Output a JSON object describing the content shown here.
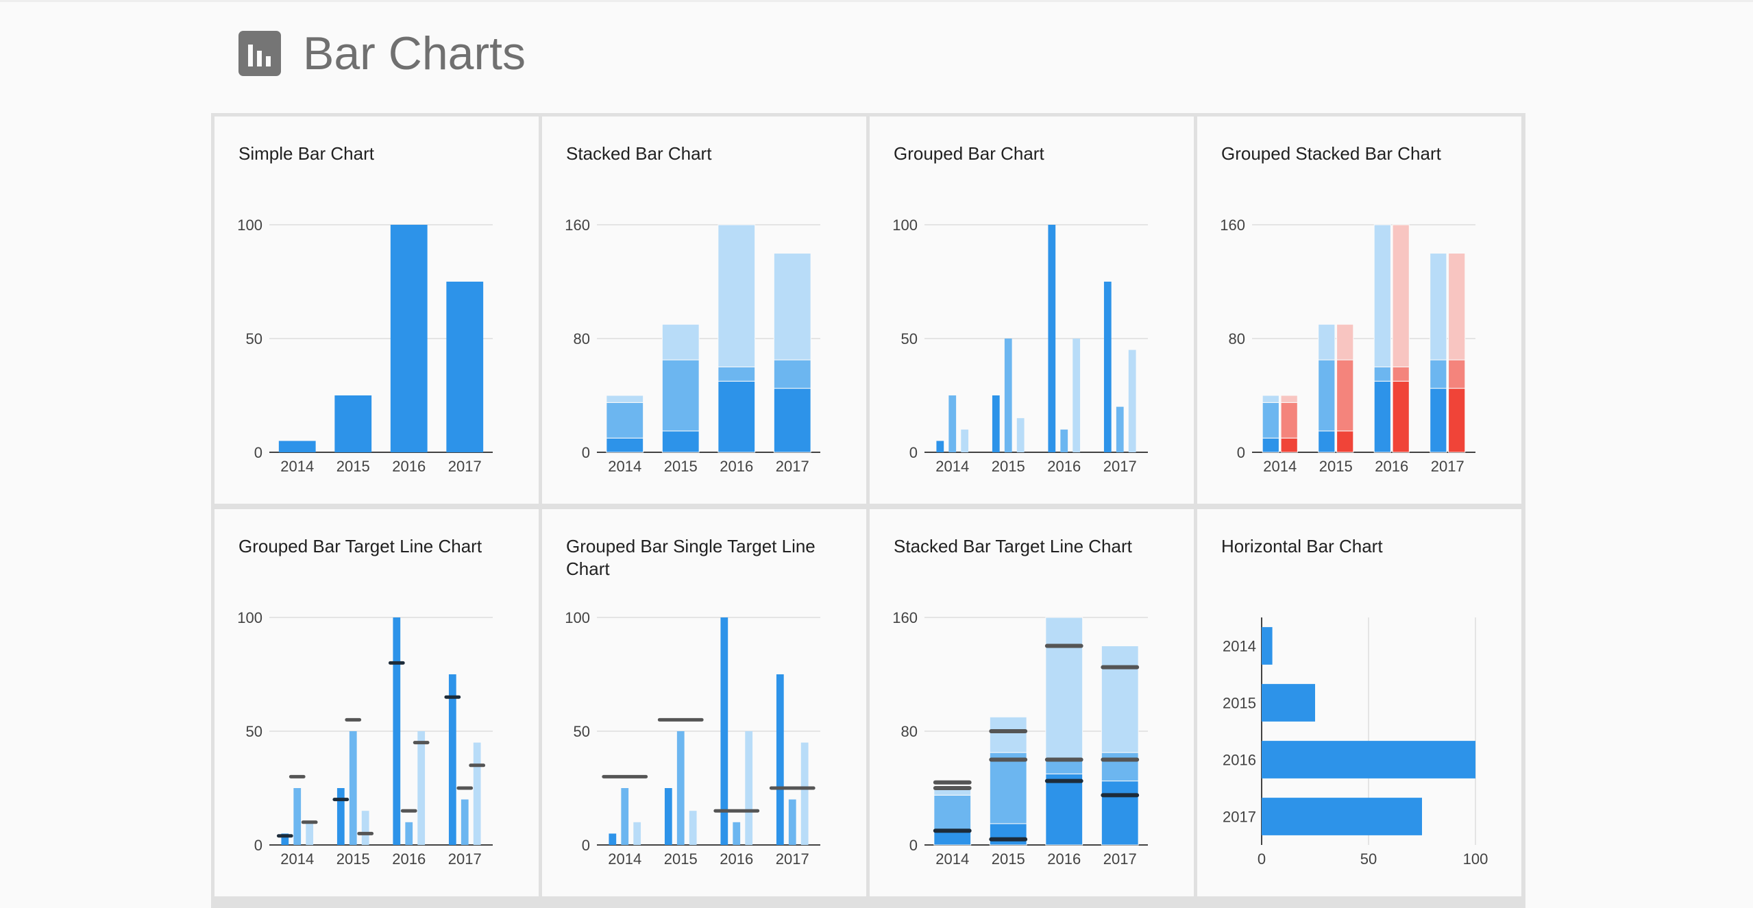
{
  "page": {
    "title": "Bar Charts",
    "icon": "bar-chart-icon"
  },
  "colors": {
    "blue_dark": "#2d93e9",
    "blue_mid": "#6cb6f0",
    "blue_light": "#b8dcf8",
    "red_dark": "#f04438",
    "red_mid": "#f4847c",
    "red_light": "#f8c5c1",
    "target_line": "#555555",
    "target_line_dark": "#1d2c3a",
    "gridline": "#dddddd",
    "axis": "#424242"
  },
  "chart_data": [
    {
      "id": "simple",
      "type": "bar",
      "title": "Simple Bar Chart",
      "categories": [
        "2014",
        "2015",
        "2016",
        "2017"
      ],
      "series": [
        {
          "values": [
            5,
            25,
            100,
            75
          ]
        }
      ],
      "ylim": [
        0,
        100
      ],
      "yticks": [
        "0",
        "50",
        "100"
      ],
      "mode": "simple",
      "grid": true
    },
    {
      "id": "stacked",
      "type": "bar",
      "title": "Stacked Bar Chart",
      "categories": [
        "2014",
        "2015",
        "2016",
        "2017"
      ],
      "series": [
        {
          "values": [
            10,
            15,
            50,
            45
          ]
        },
        {
          "values": [
            25,
            50,
            10,
            20
          ]
        },
        {
          "values": [
            5,
            25,
            100,
            75
          ]
        }
      ],
      "ylim": [
        0,
        160
      ],
      "yticks": [
        "0",
        "80",
        "160"
      ],
      "mode": "stacked",
      "grid": true
    },
    {
      "id": "grouped",
      "type": "bar",
      "title": "Grouped Bar Chart",
      "categories": [
        "2014",
        "2015",
        "2016",
        "2017"
      ],
      "series": [
        {
          "values": [
            5,
            25,
            100,
            75
          ]
        },
        {
          "values": [
            25,
            50,
            10,
            20
          ]
        },
        {
          "values": [
            10,
            15,
            50,
            45
          ]
        }
      ],
      "ylim": [
        0,
        100
      ],
      "yticks": [
        "0",
        "50",
        "100"
      ],
      "mode": "grouped",
      "grid": true
    },
    {
      "id": "grouped-stacked",
      "type": "bar",
      "title": "Grouped Stacked Bar Chart",
      "categories": [
        "2014",
        "2015",
        "2016",
        "2017"
      ],
      "groups": [
        {
          "palette": "blue",
          "series": [
            {
              "values": [
                10,
                15,
                50,
                45
              ]
            },
            {
              "values": [
                25,
                50,
                10,
                20
              ]
            },
            {
              "values": [
                5,
                25,
                100,
                75
              ]
            }
          ]
        },
        {
          "palette": "red",
          "series": [
            {
              "values": [
                10,
                15,
                50,
                45
              ]
            },
            {
              "values": [
                25,
                50,
                10,
                20
              ]
            },
            {
              "values": [
                5,
                25,
                100,
                75
              ]
            }
          ]
        }
      ],
      "ylim": [
        0,
        160
      ],
      "yticks": [
        "0",
        "80",
        "160"
      ],
      "mode": "grouped-stacked",
      "grid": true
    },
    {
      "id": "grouped-target",
      "type": "bar",
      "title": "Grouped Bar Target Line Chart",
      "categories": [
        "2014",
        "2015",
        "2016",
        "2017"
      ],
      "series": [
        {
          "values": [
            5,
            25,
            100,
            75
          ],
          "targets": [
            4,
            20,
            80,
            65
          ]
        },
        {
          "values": [
            25,
            50,
            10,
            20
          ],
          "targets": [
            30,
            55,
            15,
            25
          ]
        },
        {
          "values": [
            10,
            15,
            50,
            45
          ],
          "targets": [
            10,
            5,
            45,
            35
          ]
        }
      ],
      "ylim": [
        0,
        100
      ],
      "yticks": [
        "0",
        "50",
        "100"
      ],
      "mode": "grouped-target",
      "grid": true
    },
    {
      "id": "grouped-single-target",
      "type": "bar",
      "title": "Grouped Bar Single Target Line Chart",
      "categories": [
        "2014",
        "2015",
        "2016",
        "2017"
      ],
      "series": [
        {
          "values": [
            5,
            25,
            100,
            75
          ]
        },
        {
          "values": [
            25,
            50,
            10,
            20
          ]
        },
        {
          "values": [
            10,
            15,
            50,
            45
          ]
        }
      ],
      "targets": [
        30,
        55,
        15,
        25
      ],
      "ylim": [
        0,
        100
      ],
      "yticks": [
        "0",
        "50",
        "100"
      ],
      "mode": "grouped-single-target",
      "grid": true
    },
    {
      "id": "stacked-target",
      "type": "bar",
      "title": "Stacked Bar Target Line Chart",
      "categories": [
        "2014",
        "2015",
        "2016",
        "2017"
      ],
      "series": [
        {
          "values": [
            10,
            15,
            50,
            45
          ]
        },
        {
          "values": [
            25,
            50,
            10,
            20
          ]
        },
        {
          "values": [
            5,
            25,
            100,
            75
          ]
        }
      ],
      "targets": [
        [
          10,
          4,
          45,
          35
        ],
        [
          40,
          60,
          60,
          60
        ],
        [
          44,
          80,
          140,
          125
        ]
      ],
      "ylim": [
        0,
        160
      ],
      "yticks": [
        "0",
        "80",
        "160"
      ],
      "mode": "stacked-target",
      "grid": true
    },
    {
      "id": "horizontal",
      "type": "bar",
      "title": "Horizontal Bar Chart",
      "categories": [
        "2014",
        "2015",
        "2016",
        "2017"
      ],
      "series": [
        {
          "values": [
            5,
            25,
            100,
            75
          ]
        }
      ],
      "xlim": [
        0,
        100
      ],
      "xticks": [
        "0",
        "50",
        "100"
      ],
      "mode": "horizontal",
      "grid": true
    }
  ]
}
